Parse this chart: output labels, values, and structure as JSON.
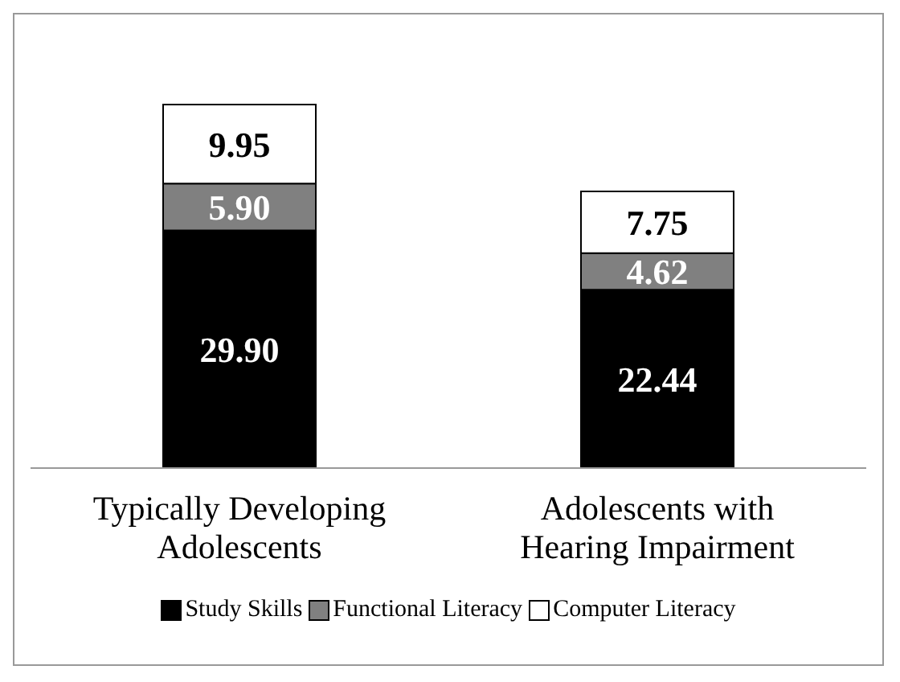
{
  "chart_data": {
    "type": "bar",
    "stacked": true,
    "categories": [
      "Typically Developing Adolescents",
      "Adolescents with Hearing Impairment"
    ],
    "series": [
      {
        "name": "Study Skills",
        "color": "#000000",
        "values": [
          29.9,
          22.44
        ],
        "value_labels": [
          "29.90",
          "22.44"
        ]
      },
      {
        "name": "Functional Literacy",
        "color": "#808080",
        "values": [
          5.9,
          4.62
        ],
        "value_labels": [
          "5.90",
          "4.62"
        ]
      },
      {
        "name": "Computer Literacy",
        "color": "#ffffff",
        "values": [
          9.95,
          7.75
        ],
        "value_labels": [
          "9.95",
          "7.75"
        ]
      }
    ],
    "legend": "bottom",
    "grid": false
  }
}
